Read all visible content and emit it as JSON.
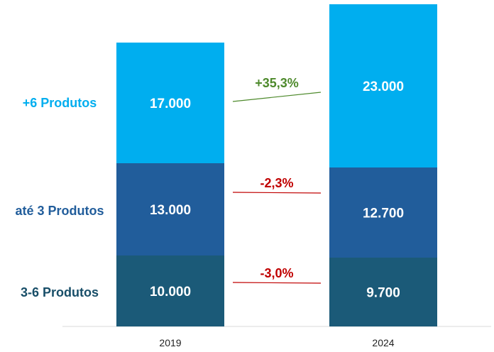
{
  "chart_data": {
    "type": "bar",
    "stacked": true,
    "categories": [
      "2019",
      "2024"
    ],
    "series": [
      {
        "name": "3-6 Produtos",
        "values": [
          10000,
          9700
        ],
        "labels": [
          "10.000",
          "9.700"
        ],
        "color": "#1b5a78",
        "label_color": "#184e68"
      },
      {
        "name": "até 3 Produtos",
        "values": [
          13000,
          12700
        ],
        "labels": [
          "13.000",
          "12.700"
        ],
        "color": "#215d9b",
        "label_color": "#215d9b"
      },
      {
        "name": "+6 Produtos",
        "values": [
          17000,
          23000
        ],
        "labels": [
          "17.000",
          "23.000"
        ],
        "color": "#00aeef",
        "label_color": "#00aeef"
      }
    ],
    "changes": [
      {
        "series": "3-6 Produtos",
        "label": "-3,0%",
        "color": "#c00000"
      },
      {
        "series": "até 3 Produtos",
        "label": "-2,3%",
        "color": "#c00000"
      },
      {
        "series": "+6 Produtos",
        "label": "+35,3%",
        "color": "#4e8a2c"
      }
    ],
    "ylim": [
      0,
      45400
    ],
    "grid": false,
    "legend": "left"
  }
}
